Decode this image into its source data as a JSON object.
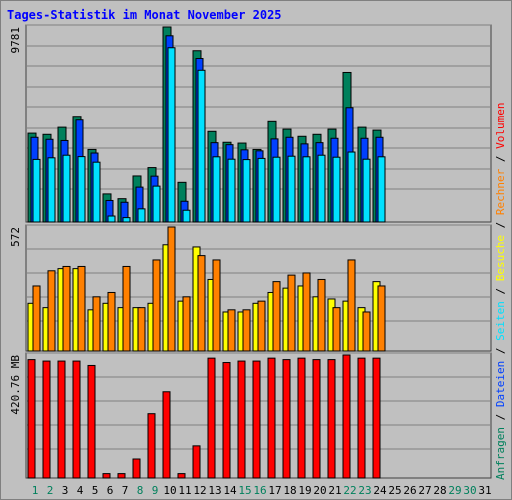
{
  "title": "Tages-Statistik im Monat November 2025",
  "colors": {
    "background": "#c0c0c0",
    "grid": "#808080",
    "anfragen": "#00805c",
    "dateien": "#0040ff",
    "seiten": "#00e0ff",
    "besuche": "#ffff00",
    "rechner": "#ff8000",
    "volumen": "#ff0000",
    "weekend_day": "#00805c",
    "weekday": "#000000"
  },
  "legend_right": [
    {
      "text": "Anfragen",
      "color": "#00805c"
    },
    {
      "text": "/",
      "color": "#000000"
    },
    {
      "text": "Dateien",
      "color": "#0040ff"
    },
    {
      "text": "/",
      "color": "#000000"
    },
    {
      "text": "Seiten",
      "color": "#00e0ff"
    },
    {
      "text": "/",
      "color": "#000000"
    },
    {
      "text": "Besuche",
      "color": "#ffff00"
    },
    {
      "text": "/",
      "color": "#000000"
    },
    {
      "text": "Rechner",
      "color": "#ff8000"
    },
    {
      "text": "/",
      "color": "#000000"
    },
    {
      "text": "Volumen",
      "color": "#ff0000"
    }
  ],
  "chart_data": {
    "type": "bar",
    "title": "Tages-Statistik im Monat November 2025",
    "categories": [
      "1",
      "2",
      "3",
      "4",
      "5",
      "6",
      "7",
      "8",
      "9",
      "10",
      "11",
      "12",
      "13",
      "14",
      "15",
      "16",
      "17",
      "18",
      "19",
      "20",
      "21",
      "22",
      "23",
      "24",
      "25",
      "26",
      "27",
      "28",
      "29",
      "30",
      "31"
    ],
    "weekend_days": [
      "1",
      "2",
      "8",
      "9",
      "15",
      "16",
      "22",
      "23",
      "29",
      "30"
    ],
    "panels": [
      {
        "name": "hits",
        "max_label": "9781",
        "ylim": [
          0,
          9781
        ],
        "series": [
          {
            "name": "Anfragen",
            "values": [
              4460,
              4400,
              4760,
              5280,
              3640,
              1410,
              1170,
              2310,
              2730,
              9781,
              1990,
              8590,
              4550,
              4000,
              3960,
              3640,
              5050,
              4660,
              4300,
              4400,
              4660,
              7500,
              4760,
              4610,
              0,
              0,
              0,
              0,
              0,
              0,
              0
            ]
          },
          {
            "name": "Dateien",
            "values": [
              4250,
              4150,
              4090,
              5130,
              3460,
              1080,
              990,
              1750,
              2300,
              9340,
              1040,
              8200,
              3980,
              3880,
              3620,
              3570,
              4170,
              4250,
              3920,
              3980,
              4200,
              5730,
              4200,
              4250,
              0,
              0,
              0,
              0,
              0,
              0,
              0
            ]
          },
          {
            "name": "Seiten",
            "values": [
              3140,
              3220,
              3350,
              3280,
              3000,
              300,
              220,
              660,
              1800,
              8740,
              590,
              7610,
              3270,
              3150,
              3130,
              3190,
              3250,
              3300,
              3270,
              3350,
              3250,
              3510,
              3150,
              3270,
              0,
              0,
              0,
              0,
              0,
              0,
              0
            ]
          }
        ]
      },
      {
        "name": "visits",
        "max_label": "572",
        "ylim": [
          0,
          572
        ],
        "series": [
          {
            "name": "Besuche",
            "values": [
              220,
              200,
              380,
              380,
              190,
              220,
              200,
              200,
              220,
              490,
              230,
              480,
              330,
              180,
              180,
              220,
              270,
              290,
              300,
              250,
              240,
              230,
              200,
              320,
              0,
              0,
              0,
              0,
              0,
              0,
              0
            ]
          },
          {
            "name": "Rechner",
            "values": [
              300,
              370,
              390,
              390,
              250,
              270,
              390,
              200,
              420,
              572,
              250,
              440,
              420,
              190,
              190,
              230,
              320,
              350,
              360,
              330,
              200,
              420,
              180,
              300,
              0,
              0,
              0,
              0,
              0,
              0,
              0
            ]
          }
        ]
      },
      {
        "name": "volume",
        "max_label": "420.76 MB",
        "ylim": [
          0,
          420.76
        ],
        "series": [
          {
            "name": "Volumen",
            "values": [
              405,
              400,
              400,
              400,
              385,
              15,
              15,
              65,
              220,
              295,
              15,
              110,
              410,
              395,
              400,
              400,
              410,
              405,
              410,
              405,
              405,
              420.76,
              410,
              410,
              0,
              0,
              0,
              0,
              0,
              0,
              0
            ]
          }
        ]
      }
    ],
    "legend_placement": "right-vertical",
    "grid": true
  }
}
